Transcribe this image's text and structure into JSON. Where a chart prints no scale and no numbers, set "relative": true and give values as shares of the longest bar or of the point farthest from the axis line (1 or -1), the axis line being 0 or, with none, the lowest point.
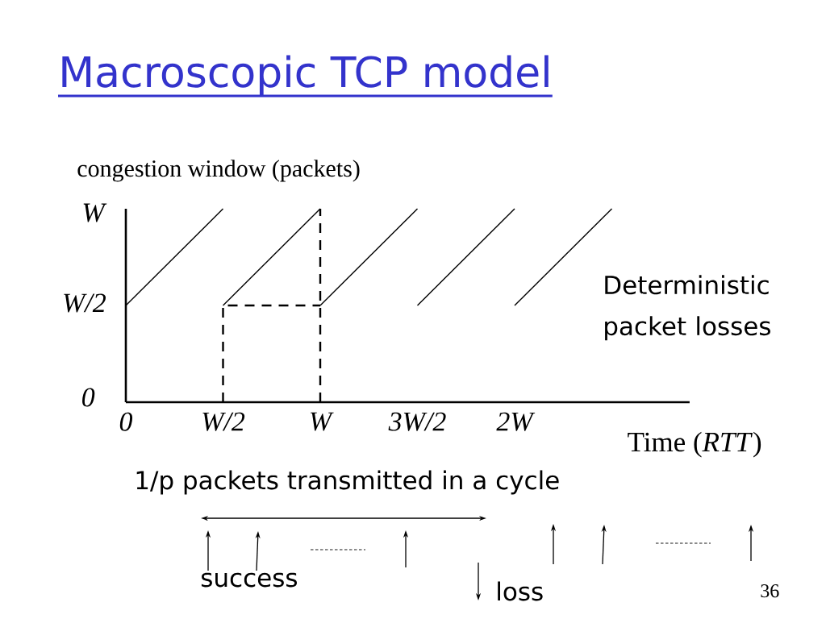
{
  "chart_data": {
    "type": "line",
    "relative": true,
    "title": "Macroscopic TCP model",
    "xlabel": "Time (*RTT*)",
    "ylabel": "congestion window (packets)",
    "categories": [
      "0",
      "W/2",
      "W",
      "3W/2",
      "2W",
      null
    ],
    "series": [
      {
        "values": [
          0.5,
          1,
          null,
          null,
          null,
          null
        ],
        "color": "#000000"
      },
      {
        "values": [
          null,
          0.5,
          1,
          null,
          null,
          null
        ],
        "color": "#000000"
      },
      {
        "values": [
          null,
          null,
          0.5,
          1,
          null,
          null
        ],
        "color": "#000000"
      },
      {
        "values": [
          null,
          null,
          null,
          0.5,
          1,
          null
        ],
        "color": "#000000"
      },
      {
        "values": [
          null,
          null,
          null,
          null,
          0.5,
          1
        ],
        "color": "#000000"
      },
      {
        "x": [
          "W/2",
          "W/2",
          "W"
        ],
        "values": [
          0,
          0.5,
          0.5
        ],
        "color": "#000000",
        "line_style": "dashed"
      }
    ],
    "ref_lines": [
      {
        "axis": "x",
        "value": "W",
        "color": "#000000",
        "line_style": "dashed"
      }
    ],
    "annotations": [
      "W",
      "W/2",
      "0",
      "Deterministic packet losses",
      "1/p packets transmitted in a cycle",
      "success",
      "loss",
      "36"
    ]
  }
}
